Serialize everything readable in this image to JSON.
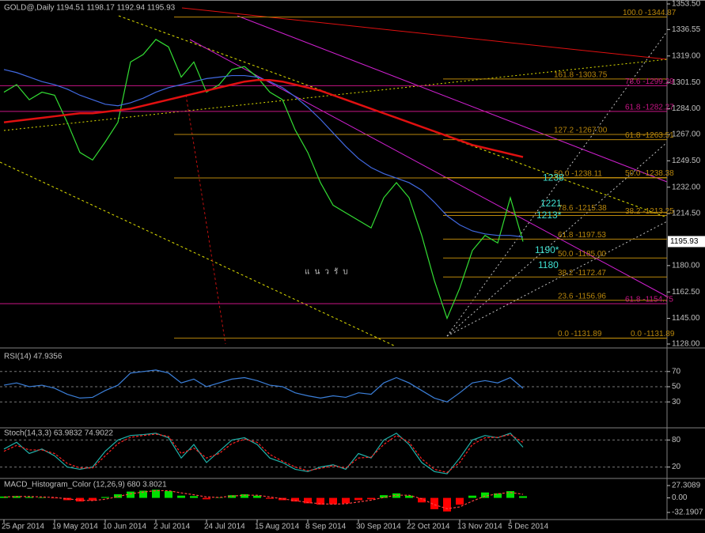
{
  "chart_data": [
    {
      "type": "line",
      "title": "GOLD@,Daily 1194.51 1198.17 1192.94 1195.93",
      "categories": [
        "25 Apr 2014",
        null,
        null,
        null,
        "19 May 2014",
        null,
        null,
        null,
        "10 Jun 2014",
        null,
        null,
        null,
        "2 Jul 2014",
        null,
        null,
        null,
        "24 Jul 2014",
        null,
        null,
        null,
        "15 Aug 2014",
        null,
        null,
        null,
        "8 Sep 2014",
        null,
        null,
        null,
        "30 Sep 2014",
        null,
        null,
        null,
        "22 Oct 2014",
        null,
        null,
        null,
        "13 Nov 2014",
        null,
        null,
        null,
        "5 Dec 2014",
        null
      ],
      "series": [
        {
          "color": "#33dd33",
          "values": [
            1295,
            1300,
            1290,
            1295,
            1293,
            1275,
            1255,
            1250,
            1262,
            1275,
            1315,
            1320,
            1330,
            1325,
            1305,
            1315,
            1295,
            1300,
            1310,
            1312,
            1305,
            1295,
            1290,
            1270,
            1255,
            1235,
            1220,
            1215,
            1210,
            1205,
            1225,
            1235,
            1225,
            1200,
            1170,
            1145,
            1165,
            1190,
            1200,
            1195,
            1225,
            1195.93
          ]
        },
        {
          "color": "#4169e1",
          "values": [
            1310,
            1308,
            1305,
            1302,
            1300,
            1297,
            1293,
            1290,
            1287,
            1286,
            1288,
            1291,
            1295,
            1298,
            1300,
            1302,
            1304,
            1305,
            1306,
            1306,
            1305,
            1302,
            1298,
            1292,
            1285,
            1277,
            1268,
            1259,
            1251,
            1245,
            1241,
            1238,
            1235,
            1230,
            1222,
            1213,
            1207,
            1203,
            1201,
            1200,
            1200,
            1199
          ]
        },
        {
          "color": "#e01010",
          "values": [
            1275,
            1276,
            1277,
            1278,
            1279,
            1280,
            1281,
            1281,
            1282,
            1283,
            1284,
            1286,
            1288,
            1290,
            1292,
            1294,
            1296,
            1298,
            1300,
            1302,
            1303,
            1303,
            1302,
            1300,
            1298,
            1296,
            1293,
            1290,
            1287,
            1284,
            1281,
            1278,
            1275,
            1272,
            1269,
            1266,
            1263,
            1260,
            1258,
            1256,
            1254,
            1252
          ]
        }
      ],
      "ylim": [
        1128,
        1353.5
      ],
      "yticks": [
        {
          "value": 1353.5,
          "label": "1353.50"
        },
        1336.55,
        {
          "value": 1319,
          "label": "1319.00"
        },
        {
          "value": 1301.5,
          "label": "1301.50"
        },
        {
          "value": 1284,
          "label": "1284.00"
        },
        {
          "value": 1267,
          "label": "1267.00"
        },
        {
          "value": 1249.5,
          "label": "1249.50"
        },
        {
          "value": 1232,
          "label": "1232.00"
        },
        {
          "value": 1214.5,
          "label": "1214.50"
        },
        {
          "value": 1180,
          "label": "1180.00"
        },
        {
          "value": 1162.5,
          "label": "1162.50"
        },
        {
          "value": 1145,
          "label": "1145.00"
        },
        {
          "value": 1128,
          "label": "1128.00"
        }
      ],
      "last_price": 1195.93,
      "levels": [
        {
          "value": 1344.87,
          "label": "100.0 -1344.87",
          "color": "#b8860b"
        },
        {
          "value": 1303.75,
          "label": "161.8 -1303.75",
          "color": "#b8860b"
        },
        {
          "value": 1299.29,
          "label": "78.6 -1299.29",
          "color": "#c71585"
        },
        {
          "value": 1282.27,
          "label": "61.8 -1282.27",
          "color": "#c71585"
        },
        {
          "value": 1267,
          "label": "127.2 -1267.00",
          "color": "#b8860b"
        },
        {
          "value": 1263.51,
          "label": "61.8 -1263.51",
          "color": "#b8860b"
        },
        {
          "value": 1238.11,
          "label": "50.0 -1238.11",
          "color": "#b8860b"
        },
        {
          "value": 1238.38,
          "label": "50.0 -1238.38",
          "color": "#b8860b"
        },
        {
          "value": 1215.38,
          "label": "78.6 -1215.38",
          "color": "#b8860b"
        },
        {
          "value": 1213.25,
          "label": "38.2 -1213.25",
          "color": "#b8860b"
        },
        {
          "value": 1197.53,
          "label": "61.8 -1197.53",
          "color": "#b8860b"
        },
        {
          "value": 1185,
          "label": "50.0 -1185.00",
          "color": "#b8860b"
        },
        {
          "value": 1172.47,
          "label": "38.2 -1172.47",
          "color": "#b8860b"
        },
        {
          "value": 1156.96,
          "label": "23.6 -1156.96",
          "color": "#b8860b"
        },
        {
          "value": 1154.75,
          "label": "61.8 -1154.75",
          "color": "#c71585"
        },
        {
          "value": 1131.89,
          "label": "0.0 -1131.89",
          "color": "#b8860b"
        },
        {
          "value": 1131.89,
          "label": "0.0 -1131.89",
          "color": "#b8860b"
        }
      ],
      "annotations": [
        {
          "value": 1238,
          "label": "1238"
        },
        {
          "value": 1221,
          "label": "1221"
        },
        {
          "value": 1213,
          "label": "1213*"
        },
        {
          "value": 1190,
          "label": "1190*"
        },
        {
          "value": 1180,
          "label": "1180"
        }
      ],
      "note": "แนวรับ"
    },
    {
      "type": "line",
      "title": "RSI(14) 47.9356",
      "ylim": [
        0,
        100
      ],
      "yticks": [
        30,
        50,
        70
      ],
      "series": [
        {
          "color": "#3b7fd9",
          "values": [
            52,
            55,
            50,
            52,
            48,
            40,
            35,
            36,
            45,
            52,
            68,
            70,
            72,
            68,
            55,
            60,
            50,
            55,
            60,
            62,
            58,
            52,
            50,
            42,
            38,
            35,
            38,
            36,
            42,
            40,
            55,
            62,
            55,
            45,
            35,
            30,
            42,
            55,
            58,
            55,
            62,
            47.9356
          ]
        }
      ]
    },
    {
      "type": "line",
      "title": "Stoch(14,3,3) 63.9832 74.9022",
      "ylim": [
        0,
        100
      ],
      "yticks": [
        20,
        80
      ],
      "series": [
        {
          "color": "#20b2aa",
          "values": [
            60,
            75,
            50,
            60,
            45,
            20,
            15,
            20,
            55,
            80,
            90,
            92,
            95,
            85,
            40,
            70,
            30,
            55,
            80,
            85,
            70,
            40,
            30,
            15,
            10,
            20,
            25,
            15,
            50,
            40,
            80,
            95,
            70,
            30,
            10,
            5,
            40,
            80,
            90,
            85,
            95,
            63.9832
          ]
        },
        {
          "color": "#ff2020",
          "values": [
            55,
            68,
            58,
            58,
            50,
            28,
            18,
            18,
            45,
            72,
            86,
            90,
            93,
            88,
            50,
            62,
            40,
            50,
            72,
            82,
            75,
            48,
            33,
            20,
            12,
            17,
            23,
            18,
            40,
            42,
            70,
            90,
            75,
            38,
            15,
            8,
            30,
            70,
            85,
            86,
            92,
            74.9022
          ]
        }
      ]
    },
    {
      "type": "bar",
      "title": "MACD_Histogram_Color (12,26,9) 680 3.8021",
      "ylim": [
        -32.1907,
        27.3089
      ],
      "yticks": [
        27.3089,
        {
          "value": 0,
          "label": "0.00"
        },
        -32.1907
      ],
      "colors": {
        "up": "#00e000",
        "down": "#ff0000"
      },
      "values": [
        3,
        4,
        2,
        1,
        -1,
        -5,
        -8,
        -6,
        2,
        8,
        14,
        16,
        18,
        15,
        5,
        4,
        -3,
        1,
        6,
        8,
        5,
        -2,
        -5,
        -8,
        -12,
        -15,
        -14,
        -12,
        -5,
        -3,
        6,
        10,
        5,
        -10,
        -25,
        -30,
        -15,
        5,
        12,
        10,
        15,
        3.8021
      ],
      "series": [
        {
          "color": "#ff4040",
          "values": [
            2,
            3,
            3,
            2,
            1,
            -2,
            -5,
            -6,
            -3,
            3,
            9,
            13,
            16,
            16,
            11,
            7,
            2,
            1,
            4,
            6,
            6,
            2,
            -2,
            -6,
            -10,
            -13,
            -14,
            -13,
            -9,
            -5,
            1,
            6,
            6,
            -2,
            -15,
            -24,
            -20,
            -7,
            4,
            9,
            12,
            8
          ]
        }
      ]
    }
  ]
}
